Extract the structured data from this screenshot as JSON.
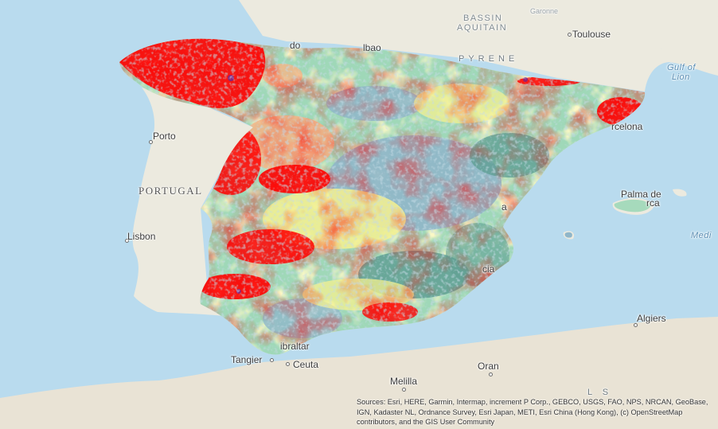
{
  "map": {
    "colors": {
      "sea": "#b9dbee",
      "land": "#eceadf",
      "land_africa": "#e9e3d5",
      "classes": [
        "#5f9f93",
        "#8fb6c9",
        "#9fd8b8",
        "#f6f18f",
        "#f6b485",
        "#ff0000",
        "#7b2a8c"
      ]
    },
    "labels": {
      "bassin_aquitain_1": "BASSIN",
      "bassin_aquitain_2": "AQUITAIN",
      "garonne": "Garonne",
      "toulouse": "Toulouse",
      "pyrenees": "PYRENE",
      "gulf_of_lion_1": "Gulf of",
      "gulf_of_lion_2": "Lion",
      "bilbao_partial": "lbao",
      "oviedo_partial": "do",
      "barcelona_partial": "rcelona",
      "porto": "Porto",
      "portugal": "PORTUGAL",
      "palma_1": "Palma de",
      "palma_2": "rca",
      "lisbon": "Lisbon",
      "medi": "Medi",
      "valencia_partial": "a",
      "murcia_partial": "cia",
      "algiers": "Algiers",
      "gibraltar": "ibraltar",
      "tangier": "Tangier",
      "ceuta": "Ceuta",
      "oran": "Oran",
      "melilla": "Melilla",
      "atlas_partial": "L     S"
    },
    "attribution": "Sources: Esri, HERE, Garmin, Intermap, increment P Corp., GEBCO, USGS, FAO, NPS, NRCAN, GeoBase, IGN, Kadaster NL, Ordnance Survey, Esri Japan, METI, Esri China (Hong Kong), (c) OpenStreetMap contributors, and the GIS User Community"
  }
}
